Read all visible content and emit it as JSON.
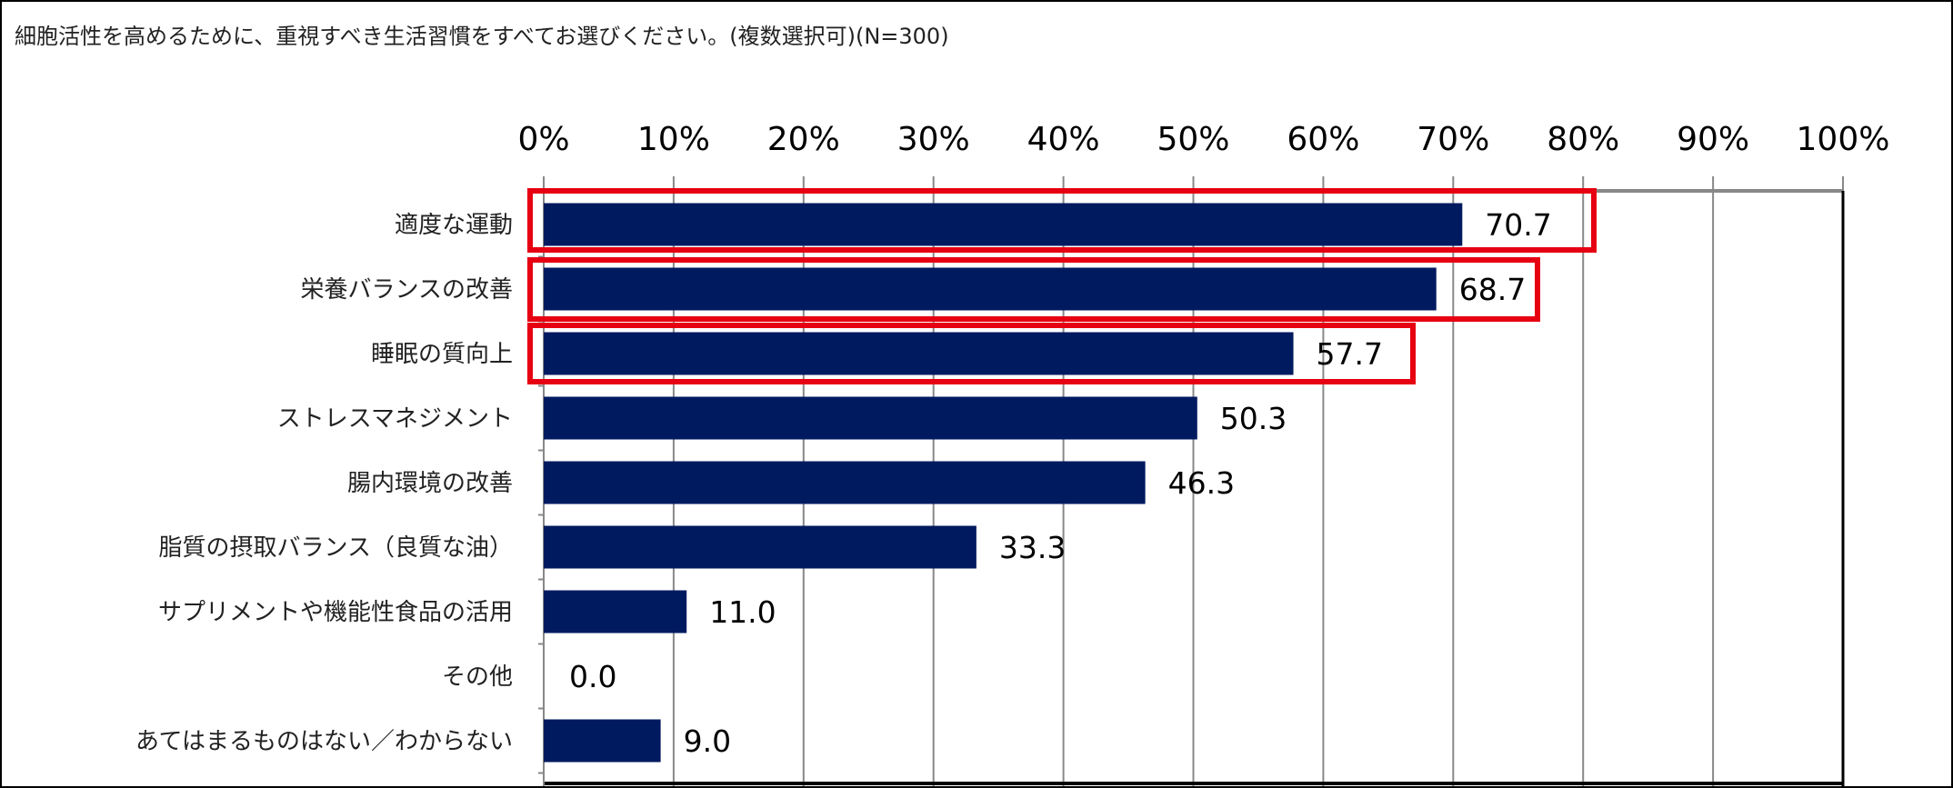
{
  "chart_data": {
    "type": "bar",
    "orientation": "horizontal",
    "title": "細胞活性を高めるために、重視すべき生活習慣をすべてお選びください。(複数選択可)(N=300)",
    "categories": [
      "適度な運動",
      "栄養バランスの改善",
      "睡眠の質向上",
      "ストレスマネジメント",
      "腸内環境の改善",
      "脂質の摂取バランス（良質な油）",
      "サプリメントや機能性食品の活用",
      "その他",
      "あてはまるものはない／わからない"
    ],
    "values": [
      70.7,
      68.7,
      57.7,
      50.3,
      46.3,
      33.3,
      11.0,
      0.0,
      9.0
    ],
    "value_labels": [
      "70.7",
      "68.7",
      "57.7",
      "50.3",
      "46.3",
      "33.3",
      "11.0",
      "0.0",
      "9.0"
    ],
    "xlim": [
      0,
      100
    ],
    "x_ticks": [
      "0%",
      "10%",
      "20%",
      "30%",
      "40%",
      "50%",
      "60%",
      "70%",
      "80%",
      "90%",
      "100%"
    ],
    "x_axis_position": "top",
    "grid": true,
    "highlighted_categories": [
      0,
      1,
      2
    ],
    "colors": {
      "bar": "#001a60",
      "highlight": "#e60012",
      "grid": "#888888"
    }
  }
}
